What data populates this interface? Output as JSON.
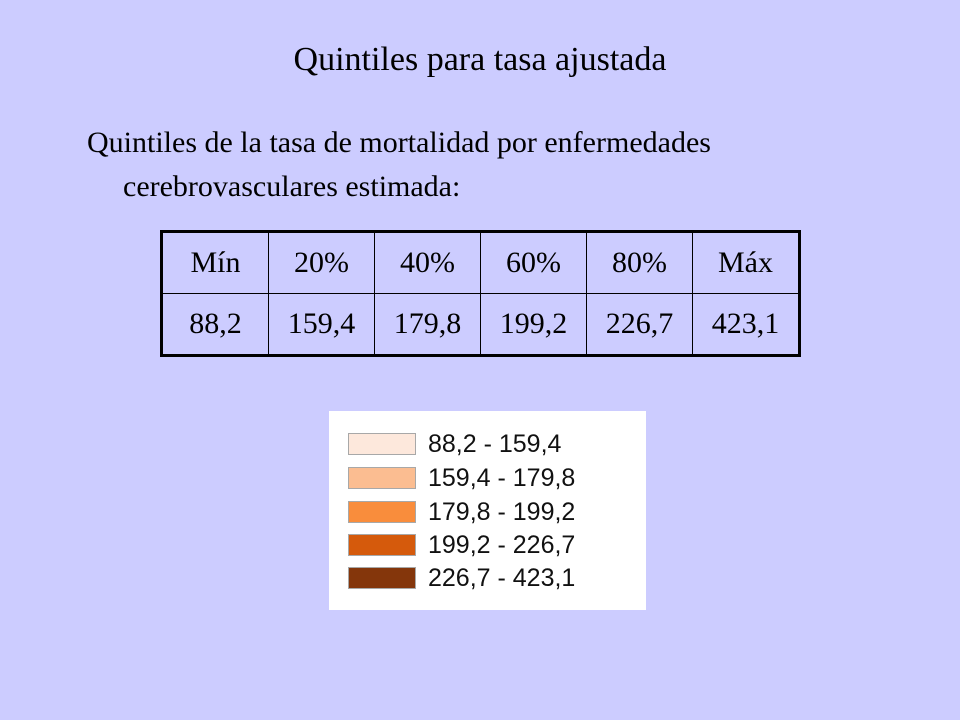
{
  "slide": {
    "title": "Quintiles para tasa ajustada",
    "body": "Quintiles de la tasa de mortalidad por enfermedades cerebrovasculares estimada:"
  },
  "table": {
    "headers": [
      "Mín",
      "20%",
      "40%",
      "60%",
      "80%",
      "Máx"
    ],
    "values": [
      "88,2",
      "159,4",
      "179,8",
      "199,2",
      "226,7",
      "423,1"
    ]
  },
  "legend": {
    "items": [
      {
        "label": "88,2 - 159,4",
        "color": "#fde8dc"
      },
      {
        "label": "159,4 - 179,8",
        "color": "#fbbd91"
      },
      {
        "label": "179,8 - 199,2",
        "color": "#f98d3c"
      },
      {
        "label": "199,2 - 226,7",
        "color": "#d55a0c"
      },
      {
        "label": "226,7 - 423,1",
        "color": "#84360b"
      }
    ]
  }
}
